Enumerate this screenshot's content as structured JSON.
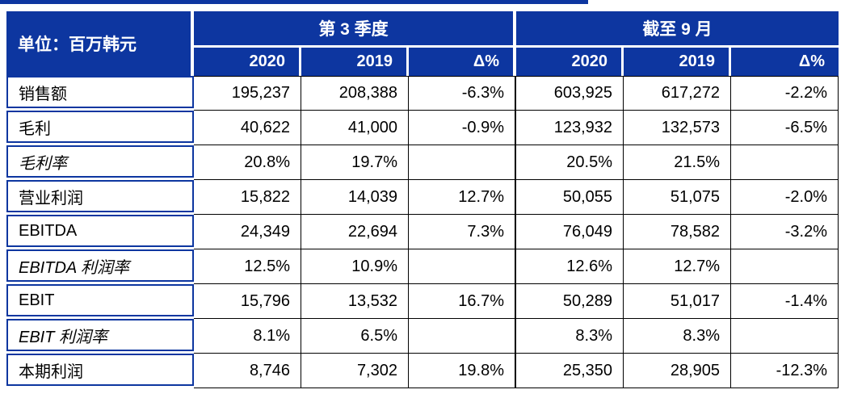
{
  "table": {
    "unit_label": "单位：百万韩元",
    "group_headers": {
      "q3": "第 3 季度",
      "ytd": "截至 9 月"
    },
    "column_headers": {
      "c1": "2020",
      "c2": "2019",
      "c3": "Δ%",
      "c4": "2020",
      "c5": "2019",
      "c6": "Δ%"
    },
    "rows": [
      {
        "label": "销售额",
        "values": [
          "195,237",
          "208,388",
          "-6.3%",
          "603,925",
          "617,272",
          "-2.2%"
        ]
      },
      {
        "label": "毛利",
        "values": [
          "40,622",
          "41,000",
          "-0.9%",
          "123,932",
          "132,573",
          "-6.5%"
        ]
      },
      {
        "label": "毛利率",
        "values": [
          "20.8%",
          "19.7%",
          "",
          "20.5%",
          "21.5%",
          ""
        ]
      },
      {
        "label": "营业利润",
        "values": [
          "15,822",
          "14,039",
          "12.7%",
          "50,055",
          "51,075",
          "-2.0%"
        ]
      },
      {
        "label": "EBITDA",
        "values": [
          "24,349",
          "22,694",
          "7.3%",
          "76,049",
          "78,582",
          "-3.2%"
        ]
      },
      {
        "label": "EBITDA 利润率",
        "values": [
          "12.5%",
          "10.9%",
          "",
          "12.6%",
          "12.7%",
          ""
        ]
      },
      {
        "label": "EBIT",
        "values": [
          "15,796",
          "13,532",
          "16.7%",
          "50,289",
          "51,017",
          "-1.4%"
        ]
      },
      {
        "label": "EBIT 利润率",
        "values": [
          "8.1%",
          "6.5%",
          "",
          "8.3%",
          "8.3%",
          ""
        ]
      },
      {
        "label": "本期利润",
        "values": [
          "8,746",
          "7,302",
          "19.8%",
          "25,350",
          "28,905",
          "-12.3%"
        ]
      }
    ]
  },
  "colors": {
    "primary_blue": "#0D36A0",
    "grid_line": "#000000",
    "header_text": "#FFFFFF"
  }
}
